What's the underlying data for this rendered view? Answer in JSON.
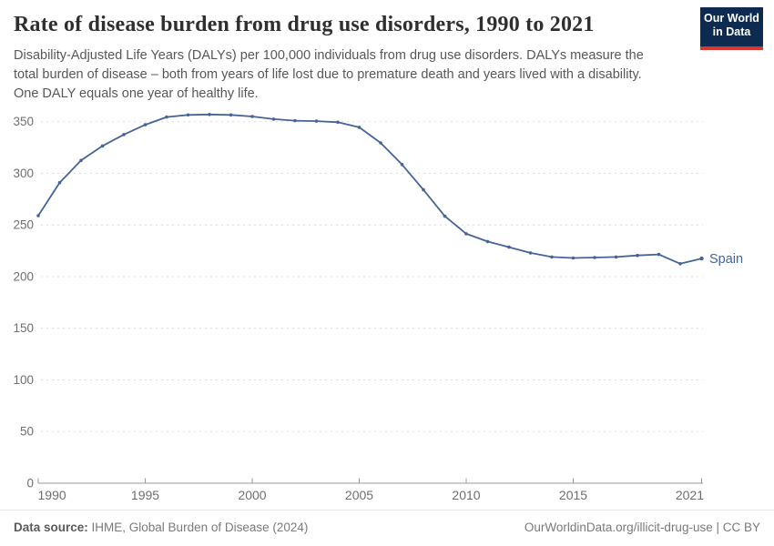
{
  "header": {
    "title": "Rate of disease burden from drug use disorders, 1990 to 2021",
    "subtitle_lines": [
      "Disability-Adjusted Life Years (DALYs) per 100,000 individuals from drug use disorders. DALYs measure the",
      "total burden of disease – both from years of life lost due to premature death and years lived with a disability.",
      "One DALY equals one year of healthy life."
    ]
  },
  "logo": {
    "line1": "Our World",
    "line2": "in Data"
  },
  "footer": {
    "source_label": "Data source:",
    "source_text": " IHME, Global Burden of Disease (2024)",
    "link": "OurWorldinData.org/illicit-drug-use",
    "separator": " | ",
    "license": "CC BY"
  },
  "colors": {
    "line": "#466496",
    "logo_bg": "#0d2b51",
    "logo_accent": "#d7382e",
    "grid": "#dcdcdc",
    "axis": "#9a9a9a",
    "tick_label": "#6e6e6e"
  },
  "chart_data": {
    "type": "line",
    "title": "Rate of disease burden from drug use disorders, 1990 to 2021",
    "x": [
      1990,
      1991,
      1992,
      1993,
      1994,
      1995,
      1996,
      1997,
      1998,
      1999,
      2000,
      2001,
      2002,
      2003,
      2004,
      2005,
      2006,
      2007,
      2008,
      2009,
      2010,
      2011,
      2012,
      2013,
      2014,
      2015,
      2016,
      2017,
      2018,
      2019,
      2020,
      2021
    ],
    "series": [
      {
        "name": "Spain",
        "values": [
          259,
          291,
          312.5,
          326.5,
          337.5,
          347,
          354.5,
          356.5,
          357,
          356.5,
          355,
          352.5,
          351,
          350.5,
          349.5,
          344.5,
          329.5,
          308.5,
          284,
          258.5,
          241.5,
          234,
          228.5,
          223,
          219,
          218,
          218.5,
          219,
          220.5,
          221.5,
          212.5,
          217.5
        ]
      }
    ],
    "xlabel": "",
    "ylabel": "",
    "ylim": [
      0,
      360
    ],
    "yticks": [
      0,
      50,
      100,
      150,
      200,
      250,
      300,
      350
    ],
    "xticks": [
      1990,
      1995,
      2000,
      2005,
      2010,
      2015,
      2021
    ],
    "grid": "dashed-horizontal",
    "legend": "end-of-line-label"
  }
}
